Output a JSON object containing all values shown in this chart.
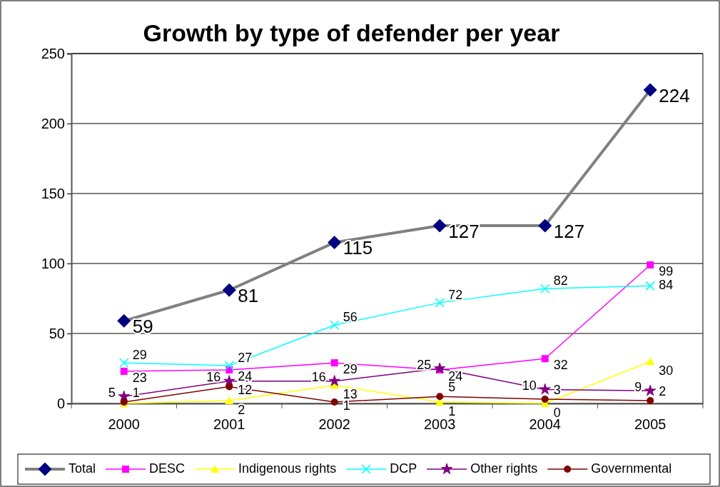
{
  "chart_data": {
    "type": "line",
    "title": "Growth by type of defender per year",
    "categories": [
      "2000",
      "2001",
      "2002",
      "2003",
      "2004",
      "2005"
    ],
    "ylim": [
      0,
      250
    ],
    "yticks": [
      0,
      50,
      100,
      150,
      200,
      250
    ],
    "grid": "y",
    "legend": "bottom",
    "series": [
      {
        "name": "Total",
        "color": "#808080",
        "marker": "diamond",
        "values": [
          59,
          81,
          115,
          127,
          127,
          224
        ],
        "value_labels": [
          "59",
          "81",
          "115",
          "127",
          "127",
          "224"
        ]
      },
      {
        "name": "DESC",
        "color": "#ff00ff",
        "marker": "square",
        "values": [
          23,
          24,
          29,
          24,
          32,
          99
        ],
        "value_labels": [
          "23",
          "24",
          "29",
          "24",
          "32",
          "99"
        ]
      },
      {
        "name": "Indigenous rights",
        "color": "#ffff00",
        "marker": "triangle",
        "values": [
          0,
          2,
          13,
          1,
          0,
          30
        ],
        "value_labels": [
          null,
          "2",
          "13",
          "1",
          "0",
          "30"
        ]
      },
      {
        "name": "DCP",
        "color": "#00ffff",
        "marker": "cross",
        "values": [
          29,
          27,
          56,
          72,
          82,
          84
        ],
        "value_labels": [
          "29",
          "27",
          "56",
          "72",
          "82",
          "84"
        ]
      },
      {
        "name": "Other rights",
        "color": "#800080",
        "marker": "star",
        "values": [
          5,
          16,
          16,
          25,
          10,
          9
        ],
        "value_labels": [
          "5",
          "16",
          "16",
          "25",
          "10",
          "9"
        ]
      },
      {
        "name": "Governmental",
        "color": "#800000",
        "marker": "circle",
        "values": [
          1,
          12,
          1,
          5,
          3,
          2
        ],
        "value_labels": [
          "1",
          "12",
          "1",
          "5",
          "3",
          "2"
        ]
      }
    ]
  }
}
